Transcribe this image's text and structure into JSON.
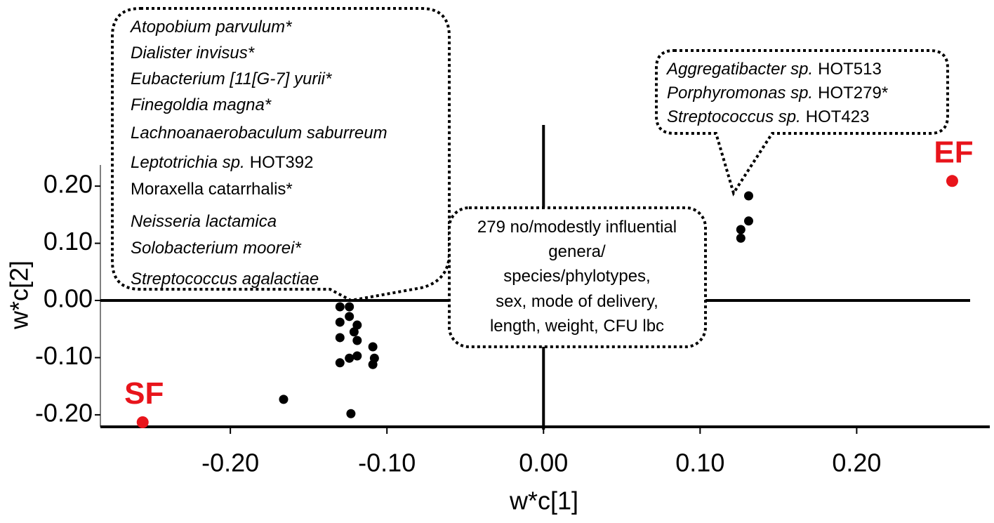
{
  "chart_data": {
    "type": "scatter",
    "xlabel": "w*c[1]",
    "ylabel": "w*c[2]",
    "xlim": [
      -0.283,
      0.285
    ],
    "ylim": [
      -0.221,
      0.237
    ],
    "xticks": [
      {
        "value": -0.2,
        "label": "-0.20"
      },
      {
        "value": -0.1,
        "label": "-0.10"
      },
      {
        "value": 0,
        "label": "0.00"
      },
      {
        "value": 0.1,
        "label": "0.10"
      },
      {
        "value": 0.2,
        "label": "0.20"
      }
    ],
    "yticks": [
      {
        "value": -0.2,
        "label": "-0.20"
      },
      {
        "value": -0.1,
        "label": "-0.10"
      },
      {
        "value": 0,
        "label": "0.00"
      },
      {
        "value": 0.1,
        "label": "0.10"
      },
      {
        "value": 0.2,
        "label": "0.20"
      }
    ],
    "points": {
      "color": "#000000",
      "x": [
        0.131,
        0.131,
        0.126,
        0.126,
        -0.13,
        -0.124,
        -0.13,
        -0.124,
        -0.119,
        -0.121,
        -0.13,
        -0.119,
        -0.109,
        -0.119,
        -0.124,
        -0.108,
        -0.13,
        -0.109,
        -0.166,
        -0.123
      ],
      "y": [
        0.183,
        0.139,
        0.124,
        0.109,
        -0.011,
        -0.011,
        -0.038,
        -0.028,
        -0.043,
        -0.055,
        -0.065,
        -0.07,
        -0.081,
        -0.097,
        -0.101,
        -0.101,
        -0.109,
        -0.112,
        -0.173,
        -0.198
      ]
    },
    "labeled_points": [
      {
        "label": "SF",
        "x": -0.256,
        "y": -0.213,
        "color": "#e8141b"
      },
      {
        "label": "EF",
        "x": 0.261,
        "y": 0.209,
        "color": "#e8141b"
      }
    ],
    "annotations": [
      {
        "lines": [
          [
            {
              "text": "Atopobium parvulum*",
              "italic": true
            }
          ],
          [
            {
              "text": "Dialister invisus*",
              "italic": true
            }
          ],
          [
            {
              "text": "Eubacterium [11[G-7] yurii*",
              "italic": true
            }
          ],
          [
            {
              "text": "Finegoldia magna*",
              "italic": true
            }
          ],
          [
            {
              "text": "Lachnoanaerobaculum saburreum",
              "italic": true
            }
          ],
          [
            {
              "text": "Leptotrichia sp.",
              "italic": true
            },
            {
              "text": "HOT392",
              "italic": false
            }
          ],
          [
            {
              "text": "Moraxella catarrhalis*",
              "italic": false
            }
          ],
          [
            {
              "text": "Neisseria lactamica",
              "italic": true
            }
          ],
          [
            {
              "text": "Solobacterium moorei*",
              "italic": true
            }
          ],
          [
            {
              "text": "Streptococcus agalactiae",
              "italic": true
            }
          ]
        ]
      },
      {
        "lines": [
          [
            {
              "text": "Aggregatibacter sp.",
              "italic": true
            },
            {
              "text": "HOT513",
              "italic": false
            }
          ],
          [
            {
              "text": "Porphyromonas sp.",
              "italic": true
            },
            {
              "text": "HOT279*",
              "italic": false
            }
          ],
          [
            {
              "text": "Streptococcus sp.",
              "italic": true
            },
            {
              "text": "HOT423",
              "italic": false
            }
          ]
        ]
      },
      {
        "lines": [
          [
            {
              "text": "279 no/modestly influential",
              "italic": false
            }
          ],
          [
            {
              "text": "genera/",
              "italic": false
            }
          ],
          [
            {
              "text": "species/phylotypes,",
              "italic": false
            }
          ],
          [
            {
              "text": "sex, mode of delivery,",
              "italic": false
            }
          ],
          [
            {
              "text": "length, weight, CFU lbc",
              "italic": false
            }
          ]
        ]
      }
    ]
  }
}
